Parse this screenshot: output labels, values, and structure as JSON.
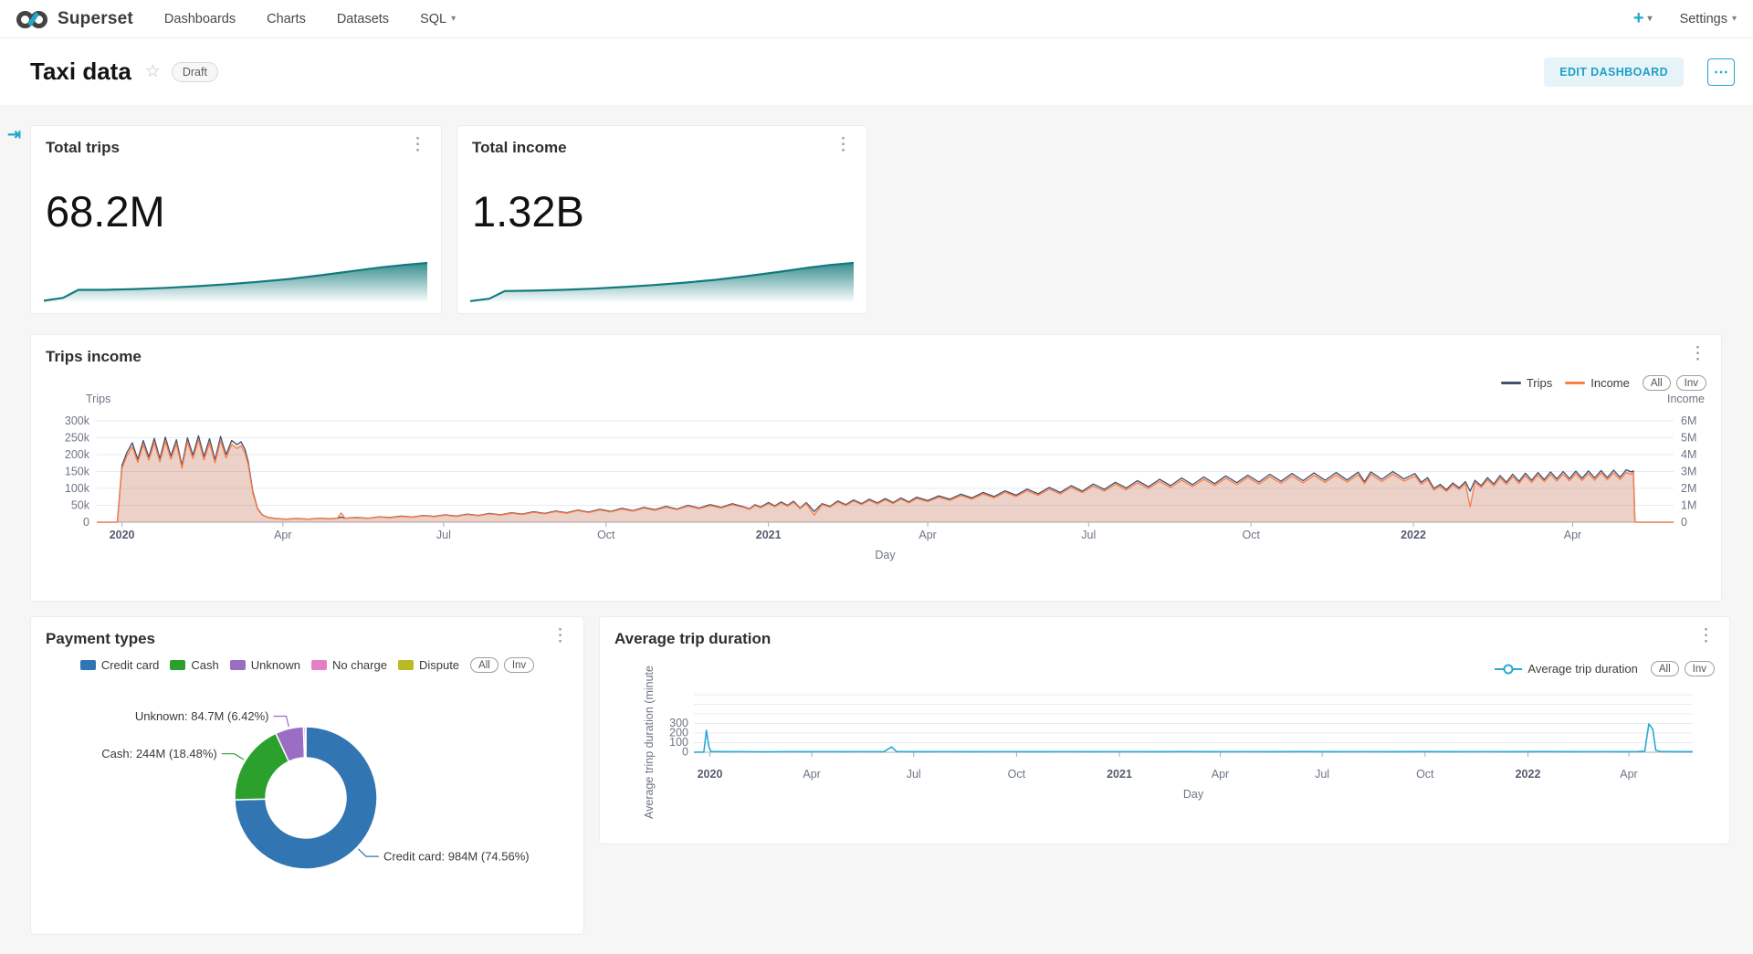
{
  "header": {
    "brand": "Superset",
    "nav": [
      {
        "label": "Dashboards"
      },
      {
        "label": "Charts"
      },
      {
        "label": "Datasets"
      },
      {
        "label": "SQL",
        "caret": true
      }
    ],
    "plus_label": "+",
    "settings_label": "Settings"
  },
  "icons": {
    "caret": "▾",
    "star": "☆",
    "kebab": "⋮",
    "more": "⋯",
    "expand": "⇥",
    "plus": "+"
  },
  "page": {
    "title": "Taxi data",
    "status_badge": "Draft",
    "edit_button": "EDIT DASHBOARD"
  },
  "colors": {
    "accent": "#1fa8c9",
    "spark_teal": "#137a7d",
    "trips_navy": "#43506e",
    "income_orange": "#fc7d45",
    "duration_cyan": "#29a8d4",
    "grid": "#e8ebf1",
    "axis": "#a9aeb8"
  },
  "chart_data": [
    {
      "type": "big_number",
      "title": "Total trips",
      "value": "68.2M",
      "trend": [
        [
          0,
          0.06
        ],
        [
          0.05,
          0.13
        ],
        [
          0.09,
          0.33
        ],
        [
          0.16,
          0.33
        ],
        [
          0.24,
          0.35
        ],
        [
          0.32,
          0.38
        ],
        [
          0.4,
          0.42
        ],
        [
          0.48,
          0.47
        ],
        [
          0.56,
          0.53
        ],
        [
          0.64,
          0.6
        ],
        [
          0.72,
          0.69
        ],
        [
          0.8,
          0.79
        ],
        [
          0.88,
          0.89
        ],
        [
          0.94,
          0.95
        ],
        [
          1,
          1
        ]
      ]
    },
    {
      "type": "big_number",
      "title": "Total income",
      "value": "1.32B",
      "trend": [
        [
          0,
          0.05
        ],
        [
          0.05,
          0.11
        ],
        [
          0.09,
          0.3
        ],
        [
          0.16,
          0.31
        ],
        [
          0.24,
          0.33
        ],
        [
          0.32,
          0.36
        ],
        [
          0.4,
          0.4
        ],
        [
          0.48,
          0.45
        ],
        [
          0.56,
          0.51
        ],
        [
          0.64,
          0.58
        ],
        [
          0.72,
          0.67
        ],
        [
          0.8,
          0.77
        ],
        [
          0.88,
          0.88
        ],
        [
          0.94,
          0.95
        ],
        [
          1,
          1
        ]
      ]
    },
    {
      "type": "line",
      "title": "Trips income",
      "x_label": "Day",
      "legend": [
        {
          "label": "Trips",
          "color": "#43506e"
        },
        {
          "label": "Income",
          "color": "#fc7d45"
        }
      ],
      "legend_pills": [
        "All",
        "Inv"
      ],
      "y_left": {
        "title": "Trips",
        "max": 300,
        "ticks": [
          0,
          50,
          100,
          150,
          200,
          250,
          300
        ],
        "labels": [
          "0",
          "50k",
          "100k",
          "150k",
          "200k",
          "250k",
          "300k"
        ]
      },
      "y_right": {
        "title": "Income",
        "max": 6,
        "ticks": [
          0,
          1,
          2,
          3,
          4,
          5,
          6
        ],
        "labels": [
          "0",
          "1M",
          "2M",
          "3M",
          "4M",
          "5M",
          "6M"
        ]
      },
      "x_ticks": [
        {
          "label": "2020",
          "f": 0.016,
          "bold": true
        },
        {
          "label": "Apr",
          "f": 0.118
        },
        {
          "label": "Jul",
          "f": 0.22
        },
        {
          "label": "Oct",
          "f": 0.323
        },
        {
          "label": "2021",
          "f": 0.426,
          "bold": true
        },
        {
          "label": "Apr",
          "f": 0.527
        },
        {
          "label": "Jul",
          "f": 0.629
        },
        {
          "label": "Oct",
          "f": 0.732
        },
        {
          "label": "2022",
          "f": 0.835,
          "bold": true
        },
        {
          "label": "Apr",
          "f": 0.936
        }
      ],
      "series_trips_k": [
        [
          0,
          0
        ],
        [
          0.013,
          0
        ],
        [
          0.016,
          168
        ],
        [
          0.019,
          205
        ],
        [
          0.0225,
          235
        ],
        [
          0.026,
          186
        ],
        [
          0.0295,
          242
        ],
        [
          0.033,
          193
        ],
        [
          0.0365,
          248
        ],
        [
          0.04,
          188
        ],
        [
          0.0435,
          252
        ],
        [
          0.047,
          196
        ],
        [
          0.0505,
          244
        ],
        [
          0.054,
          168
        ],
        [
          0.0575,
          250
        ],
        [
          0.061,
          198
        ],
        [
          0.0645,
          256
        ],
        [
          0.068,
          194
        ],
        [
          0.0715,
          247
        ],
        [
          0.075,
          185
        ],
        [
          0.0785,
          254
        ],
        [
          0.082,
          200
        ],
        [
          0.0855,
          242
        ],
        [
          0.089,
          230
        ],
        [
          0.0915,
          238
        ],
        [
          0.094,
          216
        ],
        [
          0.096,
          180
        ],
        [
          0.099,
          90
        ],
        [
          0.102,
          40
        ],
        [
          0.105,
          22
        ],
        [
          0.108,
          15
        ],
        [
          0.113,
          11
        ],
        [
          0.12,
          9
        ],
        [
          0.127,
          11
        ],
        [
          0.134,
          9
        ],
        [
          0.141,
          12
        ],
        [
          0.148,
          10
        ],
        [
          0.1525,
          12
        ],
        [
          0.155,
          15
        ],
        [
          0.1575,
          12
        ],
        [
          0.165,
          14
        ],
        [
          0.172,
          12
        ],
        [
          0.179,
          16
        ],
        [
          0.186,
          14
        ],
        [
          0.193,
          18
        ],
        [
          0.2,
          15
        ],
        [
          0.207,
          20
        ],
        [
          0.214,
          17
        ],
        [
          0.221,
          22
        ],
        [
          0.228,
          18
        ],
        [
          0.235,
          24
        ],
        [
          0.242,
          20
        ],
        [
          0.249,
          26
        ],
        [
          0.256,
          22
        ],
        [
          0.263,
          28
        ],
        [
          0.27,
          24
        ],
        [
          0.277,
          31
        ],
        [
          0.284,
          26
        ],
        [
          0.291,
          33
        ],
        [
          0.298,
          28
        ],
        [
          0.305,
          36
        ],
        [
          0.312,
          30
        ],
        [
          0.319,
          38
        ],
        [
          0.326,
          32
        ],
        [
          0.333,
          41
        ],
        [
          0.34,
          34
        ],
        [
          0.347,
          44
        ],
        [
          0.354,
          37
        ],
        [
          0.361,
          47
        ],
        [
          0.368,
          39
        ],
        [
          0.375,
          50
        ],
        [
          0.382,
          42
        ],
        [
          0.389,
          52
        ],
        [
          0.396,
          44
        ],
        [
          0.403,
          55
        ],
        [
          0.41,
          46
        ],
        [
          0.414,
          40
        ],
        [
          0.4175,
          52
        ],
        [
          0.421,
          45
        ],
        [
          0.426,
          58
        ],
        [
          0.43,
          48
        ],
        [
          0.434,
          60
        ],
        [
          0.438,
          50
        ],
        [
          0.442,
          62
        ],
        [
          0.446,
          42
        ],
        [
          0.45,
          58
        ],
        [
          0.455,
          32
        ],
        [
          0.46,
          55
        ],
        [
          0.465,
          47
        ],
        [
          0.47,
          63
        ],
        [
          0.475,
          52
        ],
        [
          0.48,
          66
        ],
        [
          0.485,
          55
        ],
        [
          0.49,
          68
        ],
        [
          0.495,
          57
        ],
        [
          0.5,
          70
        ],
        [
          0.505,
          58
        ],
        [
          0.51,
          72
        ],
        [
          0.515,
          60
        ],
        [
          0.52,
          74
        ],
        [
          0.527,
          64
        ],
        [
          0.534,
          78
        ],
        [
          0.541,
          68
        ],
        [
          0.548,
          83
        ],
        [
          0.555,
          72
        ],
        [
          0.562,
          88
        ],
        [
          0.569,
          76
        ],
        [
          0.576,
          93
        ],
        [
          0.583,
          80
        ],
        [
          0.59,
          98
        ],
        [
          0.597,
          84
        ],
        [
          0.604,
          103
        ],
        [
          0.611,
          88
        ],
        [
          0.618,
          108
        ],
        [
          0.625,
          92
        ],
        [
          0.632,
          113
        ],
        [
          0.639,
          97
        ],
        [
          0.646,
          118
        ],
        [
          0.653,
          101
        ],
        [
          0.66,
          123
        ],
        [
          0.667,
          105
        ],
        [
          0.674,
          127
        ],
        [
          0.681,
          108
        ],
        [
          0.688,
          131
        ],
        [
          0.695,
          111
        ],
        [
          0.702,
          134
        ],
        [
          0.709,
          114
        ],
        [
          0.716,
          137
        ],
        [
          0.723,
          117
        ],
        [
          0.73,
          139
        ],
        [
          0.737,
          119
        ],
        [
          0.744,
          142
        ],
        [
          0.751,
          121
        ],
        [
          0.758,
          144
        ],
        [
          0.765,
          123
        ],
        [
          0.772,
          146
        ],
        [
          0.779,
          124
        ],
        [
          0.786,
          147
        ],
        [
          0.793,
          125
        ],
        [
          0.8,
          148
        ],
        [
          0.804,
          120
        ],
        [
          0.808,
          149
        ],
        [
          0.815,
          127
        ],
        [
          0.822,
          150
        ],
        [
          0.829,
          128
        ],
        [
          0.836,
          144
        ],
        [
          0.84,
          118
        ],
        [
          0.844,
          132
        ],
        [
          0.848,
          100
        ],
        [
          0.852,
          112
        ],
        [
          0.856,
          96
        ],
        [
          0.86,
          116
        ],
        [
          0.864,
          102
        ],
        [
          0.868,
          120
        ],
        [
          0.871,
          92
        ],
        [
          0.874,
          124
        ],
        [
          0.878,
          108
        ],
        [
          0.882,
          132
        ],
        [
          0.886,
          113
        ],
        [
          0.89,
          138
        ],
        [
          0.894,
          118
        ],
        [
          0.898,
          142
        ],
        [
          0.902,
          121
        ],
        [
          0.906,
          145
        ],
        [
          0.91,
          124
        ],
        [
          0.914,
          147
        ],
        [
          0.918,
          126
        ],
        [
          0.922,
          149
        ],
        [
          0.926,
          128
        ],
        [
          0.93,
          150
        ],
        [
          0.934,
          129
        ],
        [
          0.938,
          151
        ],
        [
          0.942,
          130
        ],
        [
          0.946,
          152
        ],
        [
          0.95,
          131
        ],
        [
          0.954,
          153
        ],
        [
          0.958,
          132
        ],
        [
          0.962,
          154
        ],
        [
          0.966,
          133
        ],
        [
          0.97,
          155
        ],
        [
          0.973,
          149
        ],
        [
          0.9745,
          152
        ],
        [
          0.9755,
          0
        ],
        [
          1,
          0
        ]
      ],
      "income_rule": "income_M ≈ trips_k × 0.019 (orange series tracks trips on right axis)",
      "income_ratio": 0.019,
      "income_overrides_M": [
        [
          0.155,
          0.55
        ],
        [
          0.455,
          0.42
        ],
        [
          0.871,
          0.9
        ],
        [
          0.9745,
          2.95
        ]
      ]
    },
    {
      "type": "pie",
      "title": "Payment types",
      "legend_pills": [
        "All",
        "Inv"
      ],
      "slices": [
        {
          "label": "Credit card",
          "value": "984M",
          "percent": 74.56,
          "color": "#3175b2",
          "callout": "Credit card: 984M (74.56%)"
        },
        {
          "label": "Cash",
          "value": "244M",
          "percent": 18.48,
          "color": "#2ba02c",
          "callout": "Cash: 244M (18.48%)"
        },
        {
          "label": "Unknown",
          "value": "84.7M",
          "percent": 6.42,
          "color": "#9a6ec4",
          "callout": "Unknown: 84.7M (6.42%)"
        },
        {
          "label": "No charge",
          "percent": 0.44,
          "color": "#e57fc5"
        },
        {
          "label": "Dispute",
          "percent": 0.1,
          "color": "#b9ba25"
        }
      ]
    },
    {
      "type": "line",
      "title": "Average trip duration",
      "x_label": "Day",
      "y_label": "Average trinp duration (minute",
      "legend": [
        {
          "label": "Average trip duration",
          "color": "#29a8d4",
          "marker": "circle"
        }
      ],
      "legend_pills": [
        "All",
        "Inv"
      ],
      "y_ticks": [
        {
          "v": 0,
          "label": "0"
        },
        {
          "v": 100,
          "label": "100"
        },
        {
          "v": 200,
          "label": "200"
        },
        {
          "v": 300,
          "label": "300"
        }
      ],
      "grid_max": 600,
      "x_ticks": [
        {
          "label": "2020",
          "f": 0.016,
          "bold": true
        },
        {
          "label": "Apr",
          "f": 0.118
        },
        {
          "label": "Jul",
          "f": 0.22
        },
        {
          "label": "Oct",
          "f": 0.323
        },
        {
          "label": "2021",
          "f": 0.426,
          "bold": true
        },
        {
          "label": "Apr",
          "f": 0.527
        },
        {
          "label": "Jul",
          "f": 0.629
        },
        {
          "label": "Oct",
          "f": 0.732
        },
        {
          "label": "2022",
          "f": 0.835,
          "bold": true
        },
        {
          "label": "Apr",
          "f": 0.936
        }
      ],
      "series_minutes": [
        [
          0,
          0
        ],
        [
          0.01,
          2
        ],
        [
          0.0125,
          228
        ],
        [
          0.015,
          60
        ],
        [
          0.017,
          8
        ],
        [
          0.03,
          5
        ],
        [
          0.05,
          6
        ],
        [
          0.07,
          4
        ],
        [
          0.09,
          6
        ],
        [
          0.11,
          5
        ],
        [
          0.13,
          6
        ],
        [
          0.15,
          5
        ],
        [
          0.17,
          6
        ],
        [
          0.19,
          5
        ],
        [
          0.198,
          55
        ],
        [
          0.203,
          6
        ],
        [
          0.22,
          5
        ],
        [
          0.25,
          6
        ],
        [
          0.28,
          5
        ],
        [
          0.31,
          6
        ],
        [
          0.34,
          5
        ],
        [
          0.37,
          6
        ],
        [
          0.4,
          5
        ],
        [
          0.43,
          6
        ],
        [
          0.46,
          5
        ],
        [
          0.49,
          7
        ],
        [
          0.52,
          5
        ],
        [
          0.55,
          6
        ],
        [
          0.58,
          5
        ],
        [
          0.61,
          7
        ],
        [
          0.64,
          5
        ],
        [
          0.67,
          6
        ],
        [
          0.7,
          5
        ],
        [
          0.73,
          7
        ],
        [
          0.76,
          5
        ],
        [
          0.79,
          6
        ],
        [
          0.82,
          5
        ],
        [
          0.85,
          7
        ],
        [
          0.88,
          5
        ],
        [
          0.91,
          6
        ],
        [
          0.93,
          5
        ],
        [
          0.945,
          7
        ],
        [
          0.952,
          12
        ],
        [
          0.956,
          295
        ],
        [
          0.96,
          240
        ],
        [
          0.963,
          20
        ],
        [
          0.967,
          8
        ],
        [
          0.98,
          5
        ],
        [
          1,
          5
        ]
      ]
    }
  ]
}
